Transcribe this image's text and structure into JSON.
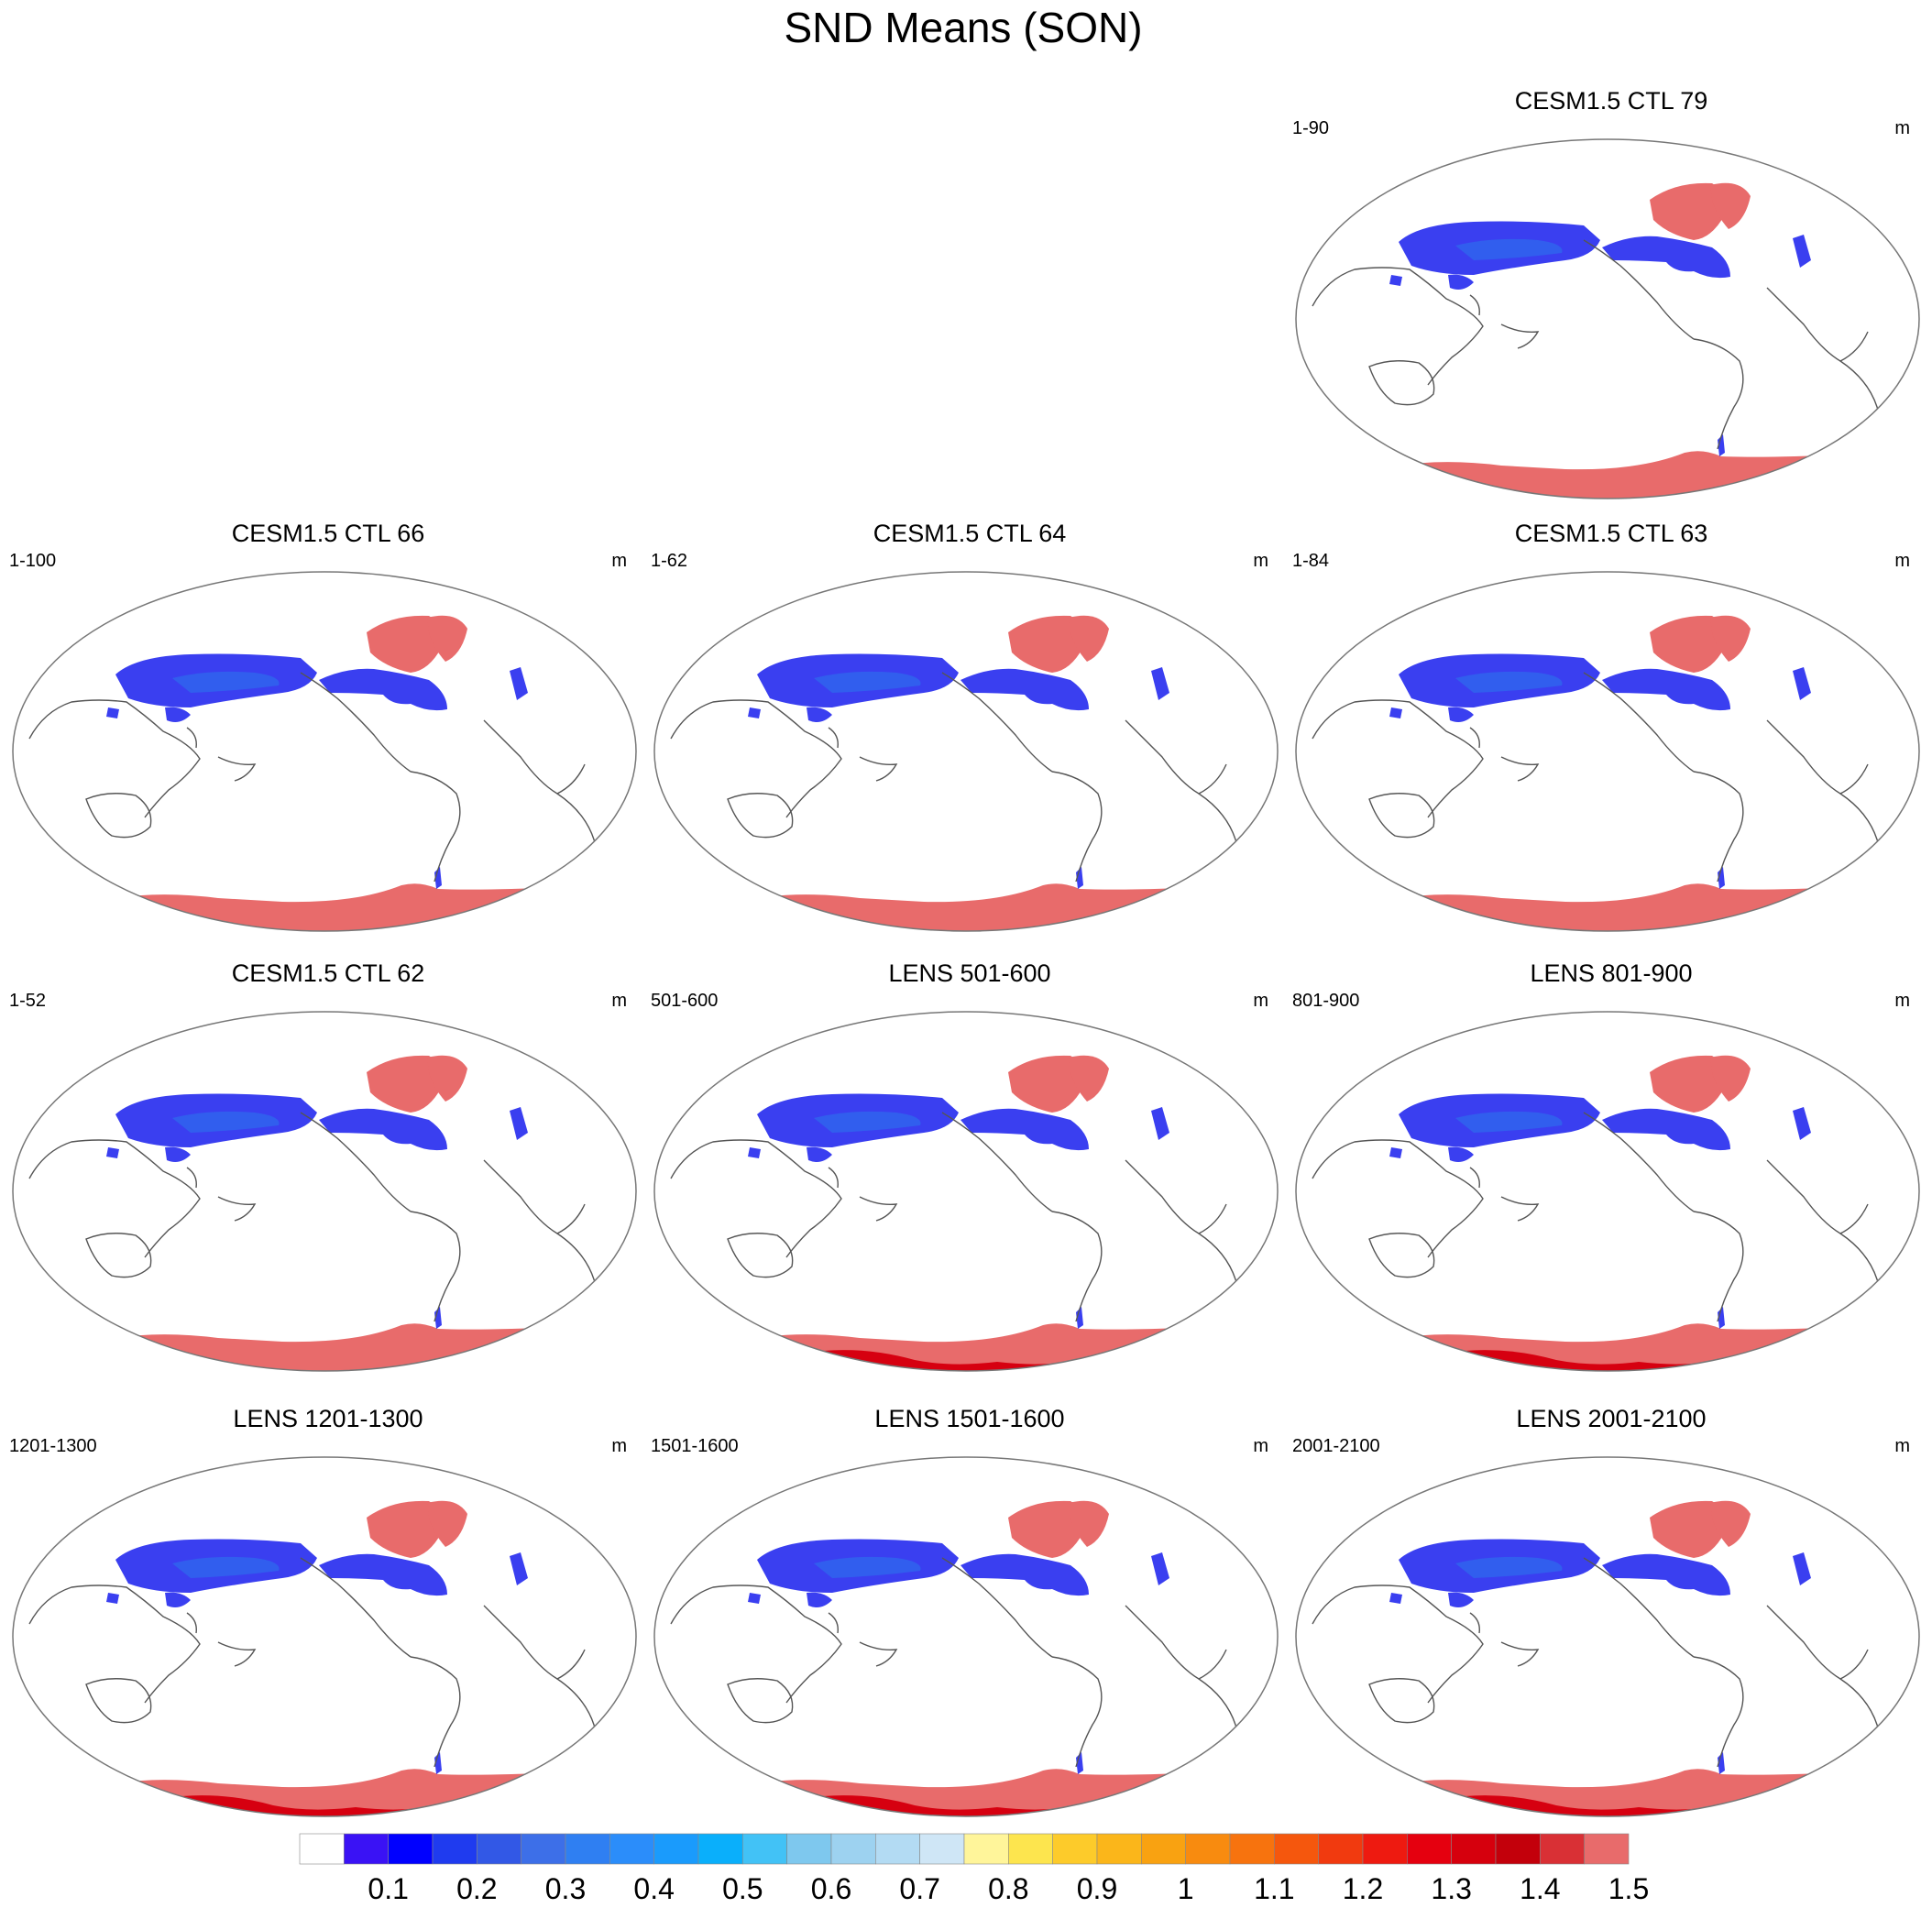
{
  "title": "SND Means (SON)",
  "panels": [
    {
      "title": "CESM1.5 CTL 79",
      "range": "1-90",
      "unit": "m",
      "variant": "ctl"
    },
    {
      "title": "CESM1.5 CTL 66",
      "range": "1-100",
      "unit": "m",
      "variant": "ctl"
    },
    {
      "title": "CESM1.5 CTL 64",
      "range": "1-62",
      "unit": "m",
      "variant": "ctl"
    },
    {
      "title": "CESM1.5 CTL 63",
      "range": "1-84",
      "unit": "m",
      "variant": "ctl"
    },
    {
      "title": "CESM1.5 CTL 62",
      "range": "1-52",
      "unit": "m",
      "variant": "ctl"
    },
    {
      "title": "LENS 501-600",
      "range": "501-600",
      "unit": "m",
      "variant": "lens"
    },
    {
      "title": "LENS 801-900",
      "range": "801-900",
      "unit": "m",
      "variant": "lens"
    },
    {
      "title": "LENS 1201-1300",
      "range": "1201-1300",
      "unit": "m",
      "variant": "lens"
    },
    {
      "title": "LENS 1501-1600",
      "range": "1501-1600",
      "unit": "m",
      "variant": "lens"
    },
    {
      "title": "LENS 2001-2100",
      "range": "2001-2100",
      "unit": "m",
      "variant": "lens"
    }
  ],
  "colorbar": {
    "labels": [
      "0.1",
      "0.2",
      "0.3",
      "0.4",
      "0.5",
      "0.6",
      "0.7",
      "0.8",
      "0.9",
      "1",
      "1.1",
      "1.2",
      "1.3",
      "1.4",
      "1.5"
    ],
    "colors": [
      "#ffffff",
      "#3a12f5",
      "#0000ff",
      "#1f3bef",
      "#3258e6",
      "#3d6fe8",
      "#2f7ff2",
      "#2b8dfa",
      "#1a9bfc",
      "#0aaffb",
      "#42c2f6",
      "#7ec8ee",
      "#9dd2f0",
      "#b3dbf3",
      "#cfe6f6",
      "#fff59a",
      "#fde54e",
      "#fdcb2a",
      "#fbb61a",
      "#f9a211",
      "#f88b0f",
      "#f7730e",
      "#f5570d",
      "#f13a0f",
      "#ee1a10",
      "#e5000f",
      "#d6000d",
      "#c3000b",
      "#d93035",
      "#e86b6b"
    ]
  },
  "map_colors": {
    "snow_low": "#3a3ff0",
    "snow_mid": "#2f66ee",
    "deep": "#e86b6b",
    "deepest": "#d60010",
    "coast": "#555555"
  }
}
